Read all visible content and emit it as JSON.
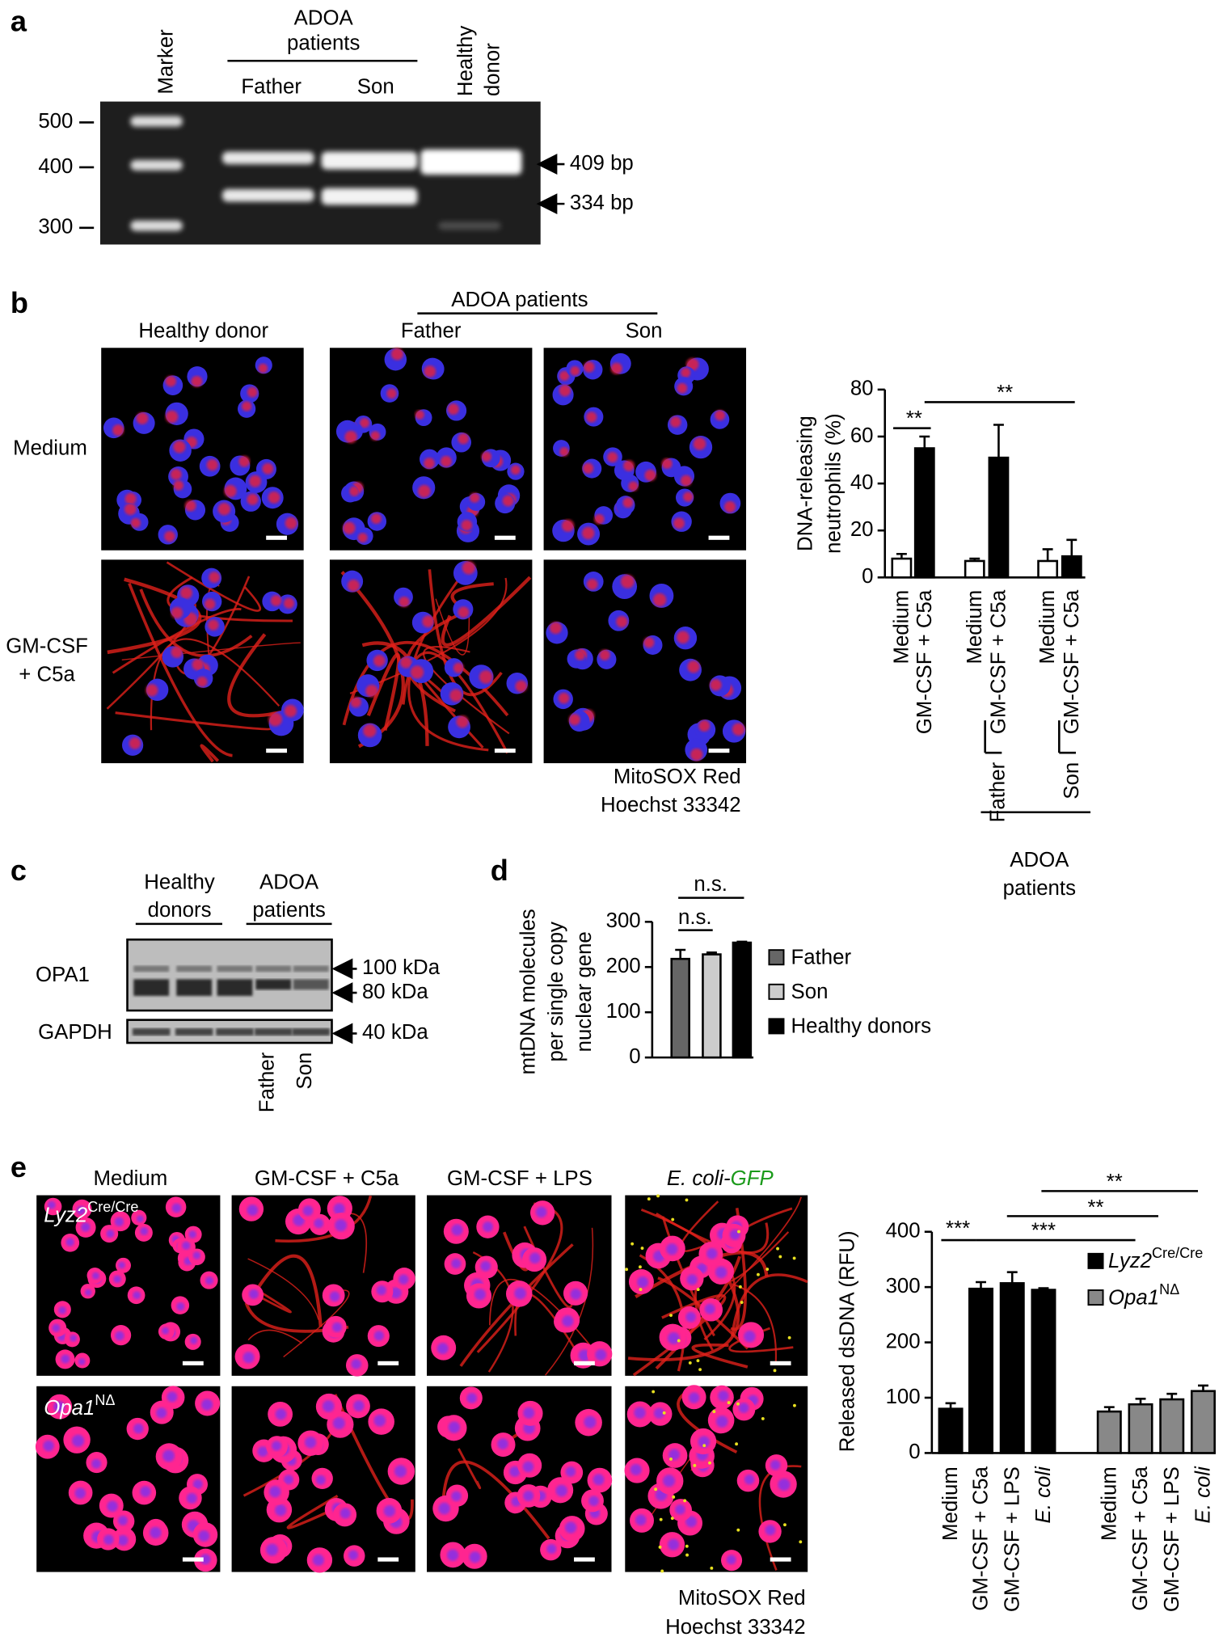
{
  "panel_labels": [
    "a",
    "b",
    "c",
    "d",
    "e"
  ],
  "gel": {
    "lanes": [
      "Marker",
      "Father",
      "Son"
    ],
    "healthy_donor": [
      "Healthy",
      "donor"
    ],
    "patient_group": [
      "ADOA",
      "patients"
    ],
    "size_markers": [
      "500",
      "400",
      "300"
    ],
    "bands": [
      "409 bp",
      "334 bp"
    ]
  },
  "micrographs_b": {
    "group": "ADOA patients",
    "columns": [
      "Healthy donor",
      "Father",
      "Son"
    ],
    "row_medium": "Medium",
    "row_stim": [
      "GM-CSF",
      "+ C5a"
    ],
    "stains": [
      "MitoSOX Red",
      "Hoechst 33342"
    ]
  },
  "blot": {
    "groups": [
      [
        "Healthy",
        "donors"
      ],
      [
        "ADOA",
        "patients"
      ]
    ],
    "proteins": [
      "OPA1",
      "GAPDH"
    ],
    "sizes": [
      "100 kDa",
      "80 kDa",
      "40 kDa"
    ],
    "lanes": [
      "Father",
      "Son"
    ]
  },
  "micrographs_e": {
    "columns": [
      "Medium",
      "GM-CSF + C5a",
      "GM-CSF + LPS"
    ],
    "ecoli_column": [
      "E. coli-",
      "GFP"
    ],
    "rows": [
      {
        "name": "Lyz2",
        "sup": "Cre/Cre"
      },
      {
        "name": "Opa1",
        "sup": "NΔ"
      }
    ],
    "stains": [
      "MitoSOX Red",
      "Hoechst 33342"
    ]
  },
  "chart_data": [
    {
      "type": "bar",
      "y_label_lines": [
        "DNA-releasing",
        "neutrophils (%)"
      ],
      "categories": [
        "Medium",
        "GM-CSF + C5a",
        "Medium",
        "GM-CSF + C5a",
        "Medium",
        "GM-CSF + C5a"
      ],
      "values": [
        8,
        55,
        7,
        51,
        7,
        9
      ],
      "errors": [
        2,
        5,
        1,
        14,
        5,
        7
      ],
      "colors": [
        "#ffffff",
        "#000000",
        "#ffffff",
        "#000000",
        "#ffffff",
        "#000000"
      ],
      "ylim": [
        0,
        80
      ],
      "yticks": [
        0,
        20,
        40,
        60,
        80
      ],
      "groups": [
        "Father",
        "Son"
      ],
      "group_title": [
        "ADOA",
        "patients"
      ],
      "significance": [
        "**",
        "**"
      ]
    },
    {
      "type": "bar",
      "y_label_lines": [
        "mtDNA molecules",
        "per single copy",
        "nuclear gene"
      ],
      "categories": [
        "Father",
        "Son",
        "Healthy donors"
      ],
      "values": [
        218,
        228,
        254
      ],
      "errors": [
        20,
        4,
        2
      ],
      "colors": [
        "#666666",
        "#cccccc",
        "#000000"
      ],
      "ylim": [
        0,
        300
      ],
      "yticks": [
        0,
        100,
        200,
        300
      ],
      "significance": [
        "n.s.",
        "n.s."
      ]
    },
    {
      "type": "bar",
      "y_label": "Released dsDNA (RFU)",
      "categories": [
        "Medium",
        "GM-CSF + C5a",
        "GM-CSF + LPS",
        "E. coli"
      ],
      "series": [
        {
          "name": "Lyz2",
          "name_sup": "Cre/Cre",
          "color": "#000000",
          "values": [
            80,
            297,
            307,
            295
          ],
          "errors": [
            10,
            12,
            20,
            3
          ]
        },
        {
          "name": "Opa1",
          "name_sup": "NΔ",
          "color": "#888888",
          "values": [
            75,
            88,
            97,
            112
          ],
          "errors": [
            8,
            10,
            10,
            10
          ]
        }
      ],
      "ylim": [
        0,
        400
      ],
      "yticks": [
        0,
        100,
        200,
        300,
        400
      ],
      "significance": [
        "***",
        "***",
        "**",
        "**"
      ]
    }
  ]
}
